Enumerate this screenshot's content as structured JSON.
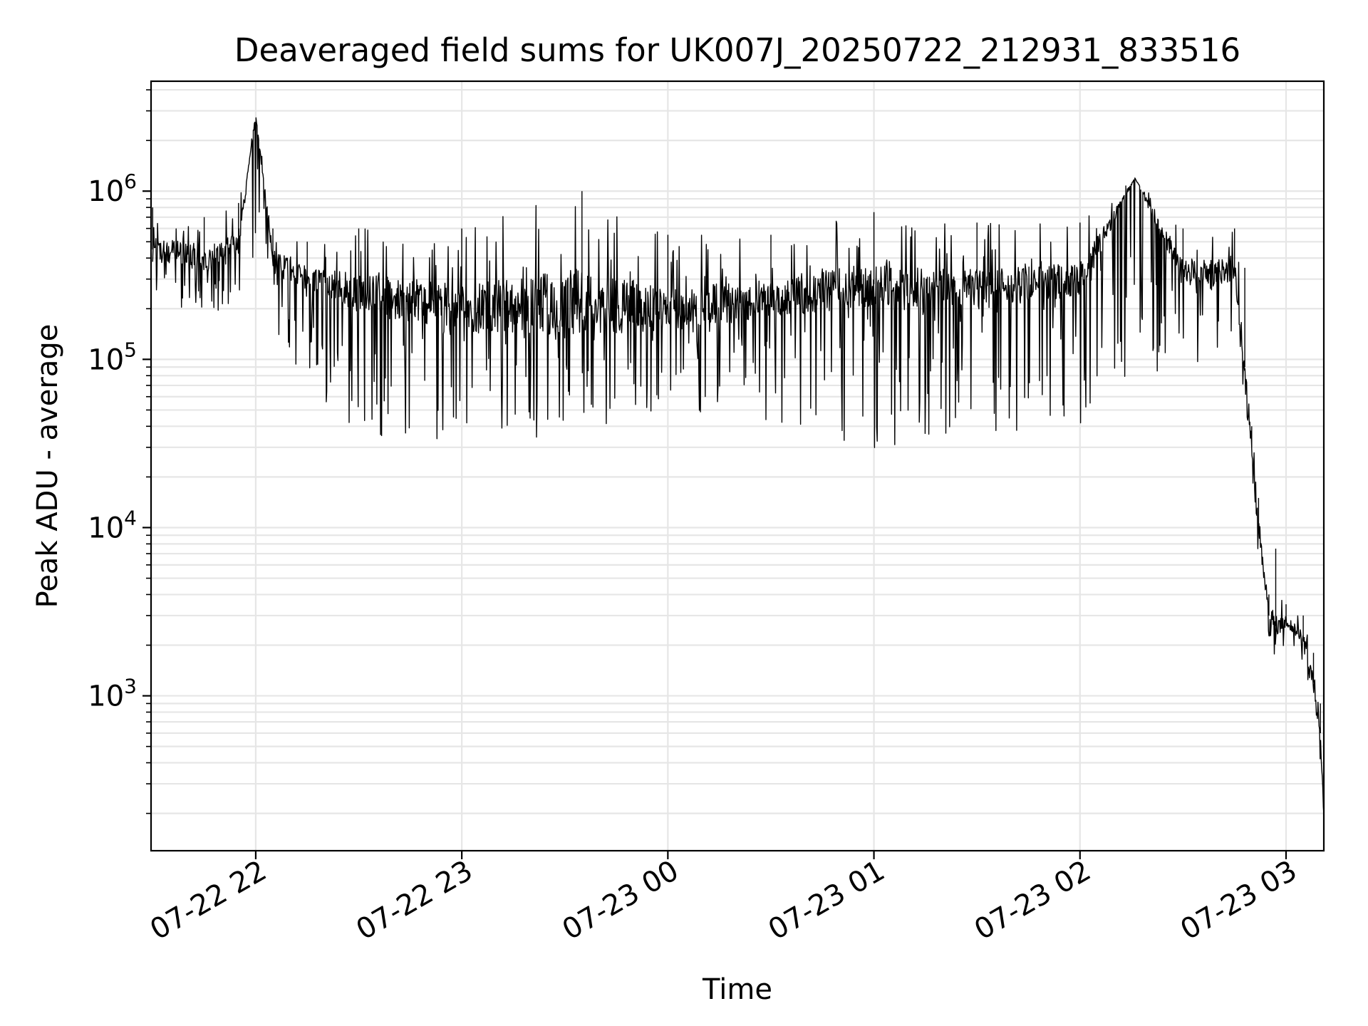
{
  "chart_data": {
    "type": "line",
    "title": "Deaveraged field sums for UK007J_20250722_212931_833516",
    "xlabel": "Time",
    "ylabel": "Peak ADU - average",
    "yscale": "log",
    "xlim": [
      "2025-07-22 21:29:31",
      "2025-07-23 03:11:00"
    ],
    "ylim": [
      120,
      4500000
    ],
    "x_ticks": [
      {
        "value": "2025-07-22 22:00",
        "label": "07-22 22"
      },
      {
        "value": "2025-07-22 23:00",
        "label": "07-22 23"
      },
      {
        "value": "2025-07-23 00:00",
        "label": "07-23 00"
      },
      {
        "value": "2025-07-23 01:00",
        "label": "07-23 01"
      },
      {
        "value": "2025-07-23 02:00",
        "label": "07-23 02"
      },
      {
        "value": "2025-07-23 03:00",
        "label": "07-23 03"
      }
    ],
    "y_ticks": [
      {
        "value": 1000,
        "base": "10",
        "exp": "3"
      },
      {
        "value": 10000,
        "base": "10",
        "exp": "4"
      },
      {
        "value": 100000,
        "base": "10",
        "exp": "5"
      },
      {
        "value": 1000000,
        "base": "10",
        "exp": "6"
      }
    ],
    "grid": "major and minor",
    "line_color": "#000000",
    "series": [
      {
        "x": [
          "2025-07-22 21:30",
          "2025-07-22 21:45",
          "2025-07-22 21:55",
          "2025-07-22 22:00",
          "2025-07-22 22:05",
          "2025-07-22 22:15",
          "2025-07-22 22:30",
          "2025-07-22 23:00",
          "2025-07-22 23:35",
          "2025-07-23 00:00",
          "2025-07-23 00:30",
          "2025-07-23 01:00",
          "2025-07-23 01:30",
          "2025-07-23 02:00",
          "2025-07-23 02:16",
          "2025-07-23 02:30",
          "2025-07-23 02:45",
          "2025-07-23 02:48",
          "2025-07-23 02:50",
          "2025-07-23 02:52",
          "2025-07-23 02:55",
          "2025-07-23 02:57",
          "2025-07-23 03:00",
          "2025-07-23 03:05",
          "2025-07-23 03:08",
          "2025-07-23 03:10",
          "2025-07-23 03:11"
        ],
        "y": [
          450000,
          400000,
          500000,
          2800000,
          400000,
          300000,
          250000,
          200000,
          220000,
          200000,
          230000,
          280000,
          260000,
          300000,
          1200000,
          320000,
          330000,
          90000,
          30000,
          10000,
          3000,
          2600,
          2800,
          2200,
          1200,
          600,
          200
        ],
        "envelope_high": [
          800000,
          700000,
          850000,
          2800000,
          600000,
          500000,
          600000,
          600000,
          1000000,
          550000,
          550000,
          750000,
          650000,
          650000,
          1200000,
          600000,
          600000,
          350000,
          40000,
          15000,
          4000,
          7500,
          3500,
          3000,
          1800,
          900,
          450
        ],
        "envelope_low": [
          200000,
          180000,
          200000,
          300000,
          150000,
          70000,
          30000,
          30000,
          35000,
          40000,
          42000,
          28000,
          36000,
          40000,
          65000,
          70000,
          150000,
          60000,
          15000,
          5000,
          1600,
          1700,
          1900,
          1500,
          900,
          350,
          190
        ]
      }
    ]
  }
}
